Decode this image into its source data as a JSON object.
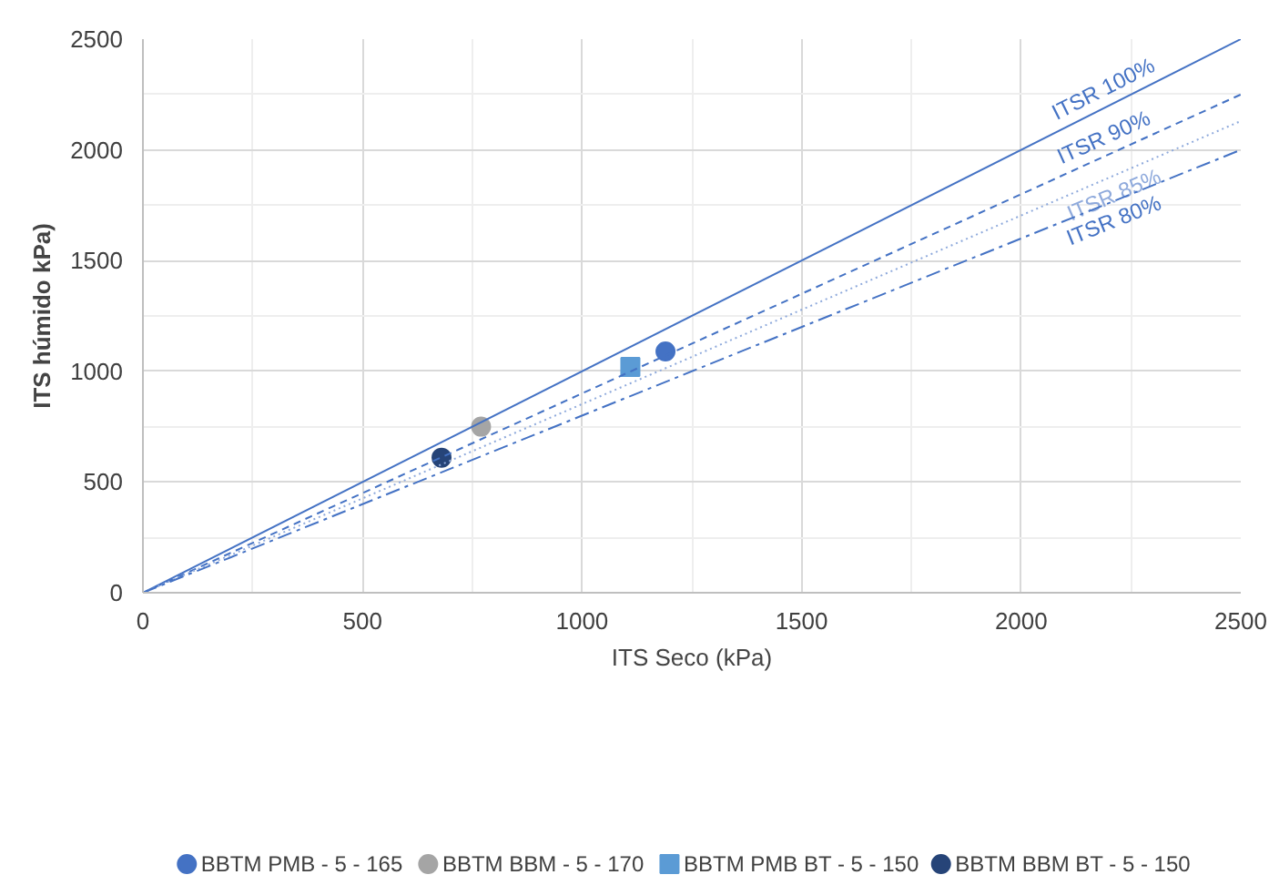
{
  "chart_data": {
    "type": "scatter",
    "xlabel": "ITS Seco (kPa)",
    "ylabel": "ITS húmido kPa)",
    "xlim": [
      0,
      2500
    ],
    "ylim": [
      0,
      2500
    ],
    "xticks": [
      0,
      {
        "value": 250,
        "label": null
      },
      500,
      {
        "value": 750,
        "label": null
      },
      1000,
      {
        "value": 1250,
        "label": null
      },
      1500,
      {
        "value": 1750,
        "label": null
      },
      2000,
      {
        "value": 2250,
        "label": null
      },
      2500
    ],
    "yticks": [
      0,
      {
        "value": 250,
        "label": null
      },
      500,
      {
        "value": 750,
        "label": null
      },
      1000,
      {
        "value": 1250,
        "label": null
      },
      1500,
      {
        "value": 1750,
        "label": null
      },
      2000,
      {
        "value": 2250,
        "label": null
      },
      2500
    ],
    "grid": true,
    "legend": "bottom",
    "series": [
      {
        "name": "BBTM PMB - 5 - 165",
        "color": "#4472c4",
        "marker": "circle",
        "x": [
          1190
        ],
        "values": [
          1090
        ]
      },
      {
        "name": "BBTM BBM - 5 - 170",
        "color": "#a5a5a5",
        "marker": "circle",
        "x": [
          770
        ],
        "values": [
          750
        ]
      },
      {
        "name": "BBTM PMB BT - 5 - 150",
        "color": "#5b9bd5",
        "marker": "square",
        "x": [
          1110
        ],
        "values": [
          1020
        ]
      },
      {
        "name": "BBTM BBM BT - 5 - 150",
        "color": "#264478",
        "marker": "circle",
        "x": [
          680
        ],
        "values": [
          610
        ]
      },
      {
        "name": "ITSR 100%",
        "type": "line",
        "color": "#4472c4",
        "line_style": "solid",
        "marker": "none",
        "x": [
          0,
          2500
        ],
        "values": [
          0,
          2500
        ]
      },
      {
        "name": "ITSR 90%",
        "type": "line",
        "color": "#4472c4",
        "line_style": "dashed",
        "marker": "none",
        "x": [
          0,
          2500
        ],
        "values": [
          0,
          2250
        ]
      },
      {
        "name": "ITSR 85%",
        "type": "line",
        "color": "#8faadc",
        "line_style": "dotted",
        "marker": "none",
        "x": [
          0,
          2500
        ],
        "values": [
          0,
          2130
        ]
      },
      {
        "name": "ITSR 80%",
        "type": "line",
        "color": "#4472c4",
        "line_style": "dashdot",
        "marker": "none",
        "x": [
          0,
          2500
        ],
        "values": [
          0,
          2000
        ]
      }
    ]
  }
}
